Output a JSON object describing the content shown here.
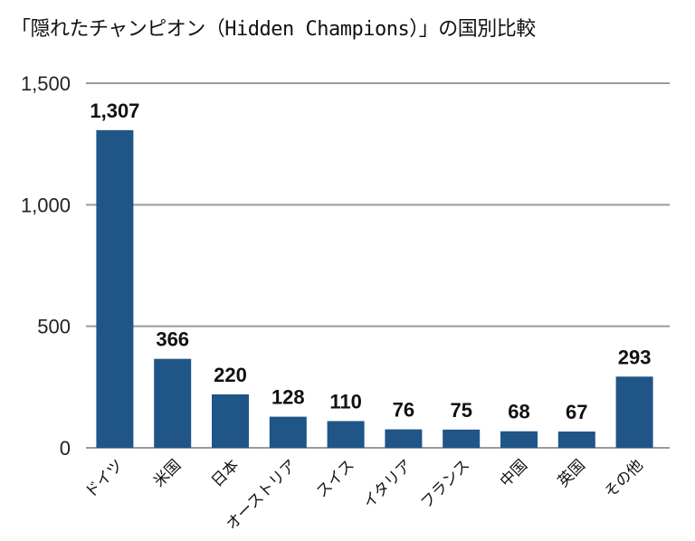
{
  "chart_data": {
    "type": "bar",
    "title": "「隠れたチャンピオン（Hidden Champions）」の国別比較",
    "categories": [
      "ドイツ",
      "米国",
      "日本",
      "オーストリア",
      "スイス",
      "イタリア",
      "フランス",
      "中国",
      "英国",
      "その他"
    ],
    "values": [
      1307,
      366,
      220,
      128,
      110,
      76,
      75,
      68,
      67,
      293
    ],
    "value_labels": [
      "1,307",
      "366",
      "220",
      "128",
      "110",
      "76",
      "75",
      "68",
      "67",
      "293"
    ],
    "ylim": [
      0,
      1500
    ],
    "y_ticks": [
      0,
      500,
      1000,
      1500
    ],
    "y_tick_labels": [
      "0",
      "500",
      "1,000",
      "1,500"
    ],
    "grid": true,
    "legend": "none",
    "bar_color": "#1F5587",
    "grid_color": "#9A9A9A"
  }
}
